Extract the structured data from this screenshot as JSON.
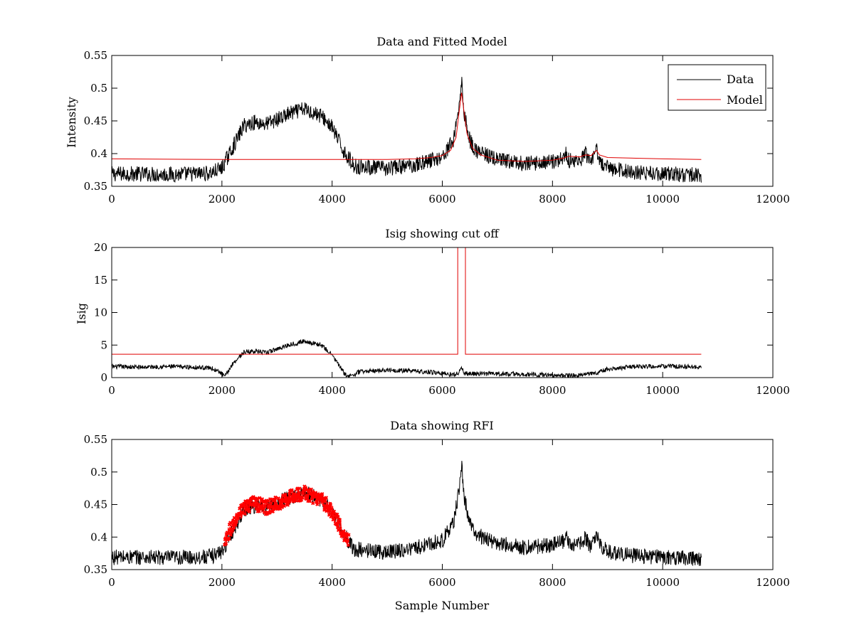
{
  "figure": {
    "background": "#ffffff",
    "colors": {
      "data": "#000000",
      "model": "#e00000",
      "rfi": "#ff0000",
      "axes": "#000000"
    }
  },
  "chart_data": [
    {
      "type": "line",
      "title": "Data and Fitted Model",
      "xlabel": "",
      "ylabel": "Intensity",
      "xlim": [
        0,
        12000
      ],
      "ylim": [
        0.35,
        0.55
      ],
      "xticks": [
        0,
        2000,
        4000,
        6000,
        8000,
        10000,
        12000
      ],
      "yticks": [
        0.35,
        0.4,
        0.45,
        0.5,
        0.55
      ],
      "legend": {
        "position": "top-right",
        "entries": [
          "Data",
          "Model"
        ]
      },
      "series": [
        {
          "name": "Data",
          "color": "#000000",
          "noise": 0.012,
          "x": [
            0,
            500,
            1000,
            1500,
            1800,
            2000,
            2200,
            2400,
            2600,
            2800,
            3000,
            3200,
            3500,
            3800,
            4000,
            4200,
            4400,
            5000,
            5500,
            6000,
            6200,
            6300,
            6350,
            6400,
            6500,
            6600,
            7000,
            7500,
            8000,
            8200,
            8250,
            8300,
            8500,
            8600,
            8700,
            8750,
            8800,
            8850,
            9000,
            9500,
            10000,
            10500,
            10700
          ],
          "y": [
            0.369,
            0.369,
            0.368,
            0.369,
            0.37,
            0.378,
            0.41,
            0.443,
            0.448,
            0.445,
            0.452,
            0.46,
            0.468,
            0.458,
            0.44,
            0.405,
            0.381,
            0.377,
            0.383,
            0.395,
            0.42,
            0.47,
            0.51,
            0.46,
            0.42,
            0.405,
            0.39,
            0.384,
            0.388,
            0.393,
            0.4,
            0.39,
            0.388,
            0.4,
            0.382,
            0.395,
            0.407,
            0.388,
            0.378,
            0.371,
            0.369,
            0.368,
            0.367
          ]
        },
        {
          "name": "Model",
          "color": "#e00000",
          "noise": 0,
          "x": [
            0,
            2000,
            4000,
            5000,
            5500,
            5800,
            6000,
            6150,
            6250,
            6300,
            6350,
            6400,
            6450,
            6550,
            6700,
            7000,
            7500,
            8000,
            8200,
            8300,
            8500,
            8600,
            8700,
            8800,
            8850,
            9000,
            10000,
            10700
          ],
          "y": [
            0.392,
            0.391,
            0.391,
            0.391,
            0.392,
            0.394,
            0.397,
            0.405,
            0.425,
            0.46,
            0.493,
            0.46,
            0.43,
            0.408,
            0.398,
            0.39,
            0.388,
            0.39,
            0.393,
            0.396,
            0.395,
            0.398,
            0.397,
            0.405,
            0.398,
            0.394,
            0.392,
            0.391
          ]
        }
      ]
    },
    {
      "type": "line",
      "title": "Isig showing cut off",
      "xlabel": "",
      "ylabel": "Isig",
      "xlim": [
        0,
        12000
      ],
      "ylim": [
        0,
        20
      ],
      "xticks": [
        0,
        2000,
        4000,
        6000,
        8000,
        10000,
        12000
      ],
      "yticks": [
        0,
        5,
        10,
        15,
        20
      ],
      "series": [
        {
          "name": "Isig",
          "color": "#000000",
          "noise": 0.35,
          "x": [
            0,
            500,
            1000,
            1500,
            1800,
            2000,
            2050,
            2200,
            2400,
            2600,
            2800,
            3000,
            3200,
            3500,
            3800,
            4000,
            4200,
            4300,
            4500,
            5000,
            5500,
            6000,
            6200,
            6300,
            6350,
            6400,
            6500,
            7000,
            7500,
            8000,
            8300,
            8500,
            8800,
            9000,
            9500,
            10000,
            10500,
            10700
          ],
          "y": [
            1.7,
            1.6,
            1.7,
            1.6,
            1.5,
            0.6,
            0.1,
            2.2,
            3.9,
            4.1,
            3.8,
            4.4,
            5.0,
            5.6,
            5.0,
            3.5,
            0.9,
            0.1,
            0.9,
            1.2,
            1.0,
            0.7,
            0.4,
            0.8,
            1.5,
            0.6,
            0.6,
            0.6,
            0.5,
            0.4,
            0.3,
            0.4,
            0.7,
            1.3,
            1.7,
            1.7,
            1.7,
            1.6
          ]
        },
        {
          "name": "Cut off",
          "color": "#e00000",
          "noise": 0,
          "x": [
            0,
            6280,
            6280,
            6420,
            6420,
            10700
          ],
          "y": [
            3.6,
            3.6,
            20,
            20,
            3.6,
            3.6
          ]
        }
      ]
    },
    {
      "type": "line",
      "title": "Data showing RFI",
      "xlabel": "Sample Number",
      "ylabel": "",
      "xlim": [
        0,
        12000
      ],
      "ylim": [
        0.35,
        0.55
      ],
      "xticks": [
        0,
        2000,
        4000,
        6000,
        8000,
        10000,
        12000
      ],
      "yticks": [
        0.35,
        0.4,
        0.45,
        0.5,
        0.55
      ],
      "series": [
        {
          "name": "Data",
          "color": "#000000",
          "noise": 0.012,
          "x": [
            0,
            500,
            1000,
            1500,
            1800,
            2000,
            2200,
            2400,
            2600,
            2800,
            3000,
            3200,
            3500,
            3800,
            4000,
            4200,
            4400,
            5000,
            5500,
            6000,
            6200,
            6300,
            6350,
            6400,
            6500,
            6600,
            7000,
            7500,
            8000,
            8200,
            8250,
            8300,
            8500,
            8600,
            8700,
            8750,
            8800,
            8850,
            9000,
            9500,
            10000,
            10500,
            10700
          ],
          "y": [
            0.369,
            0.369,
            0.368,
            0.369,
            0.37,
            0.378,
            0.41,
            0.443,
            0.448,
            0.445,
            0.452,
            0.46,
            0.468,
            0.458,
            0.44,
            0.405,
            0.381,
            0.377,
            0.383,
            0.395,
            0.42,
            0.47,
            0.51,
            0.46,
            0.42,
            0.405,
            0.39,
            0.384,
            0.388,
            0.393,
            0.4,
            0.39,
            0.388,
            0.4,
            0.382,
            0.395,
            0.407,
            0.388,
            0.378,
            0.371,
            0.369,
            0.368,
            0.367
          ]
        },
        {
          "name": "RFI",
          "color": "#ff0000",
          "noise": 0.011,
          "markers": true,
          "x": [
            2050,
            2200,
            2400,
            2600,
            2800,
            3000,
            3200,
            3500,
            3800,
            4000,
            4200,
            4300
          ],
          "y": [
            0.395,
            0.42,
            0.445,
            0.452,
            0.445,
            0.452,
            0.46,
            0.468,
            0.458,
            0.44,
            0.405,
            0.395
          ]
        }
      ]
    }
  ]
}
